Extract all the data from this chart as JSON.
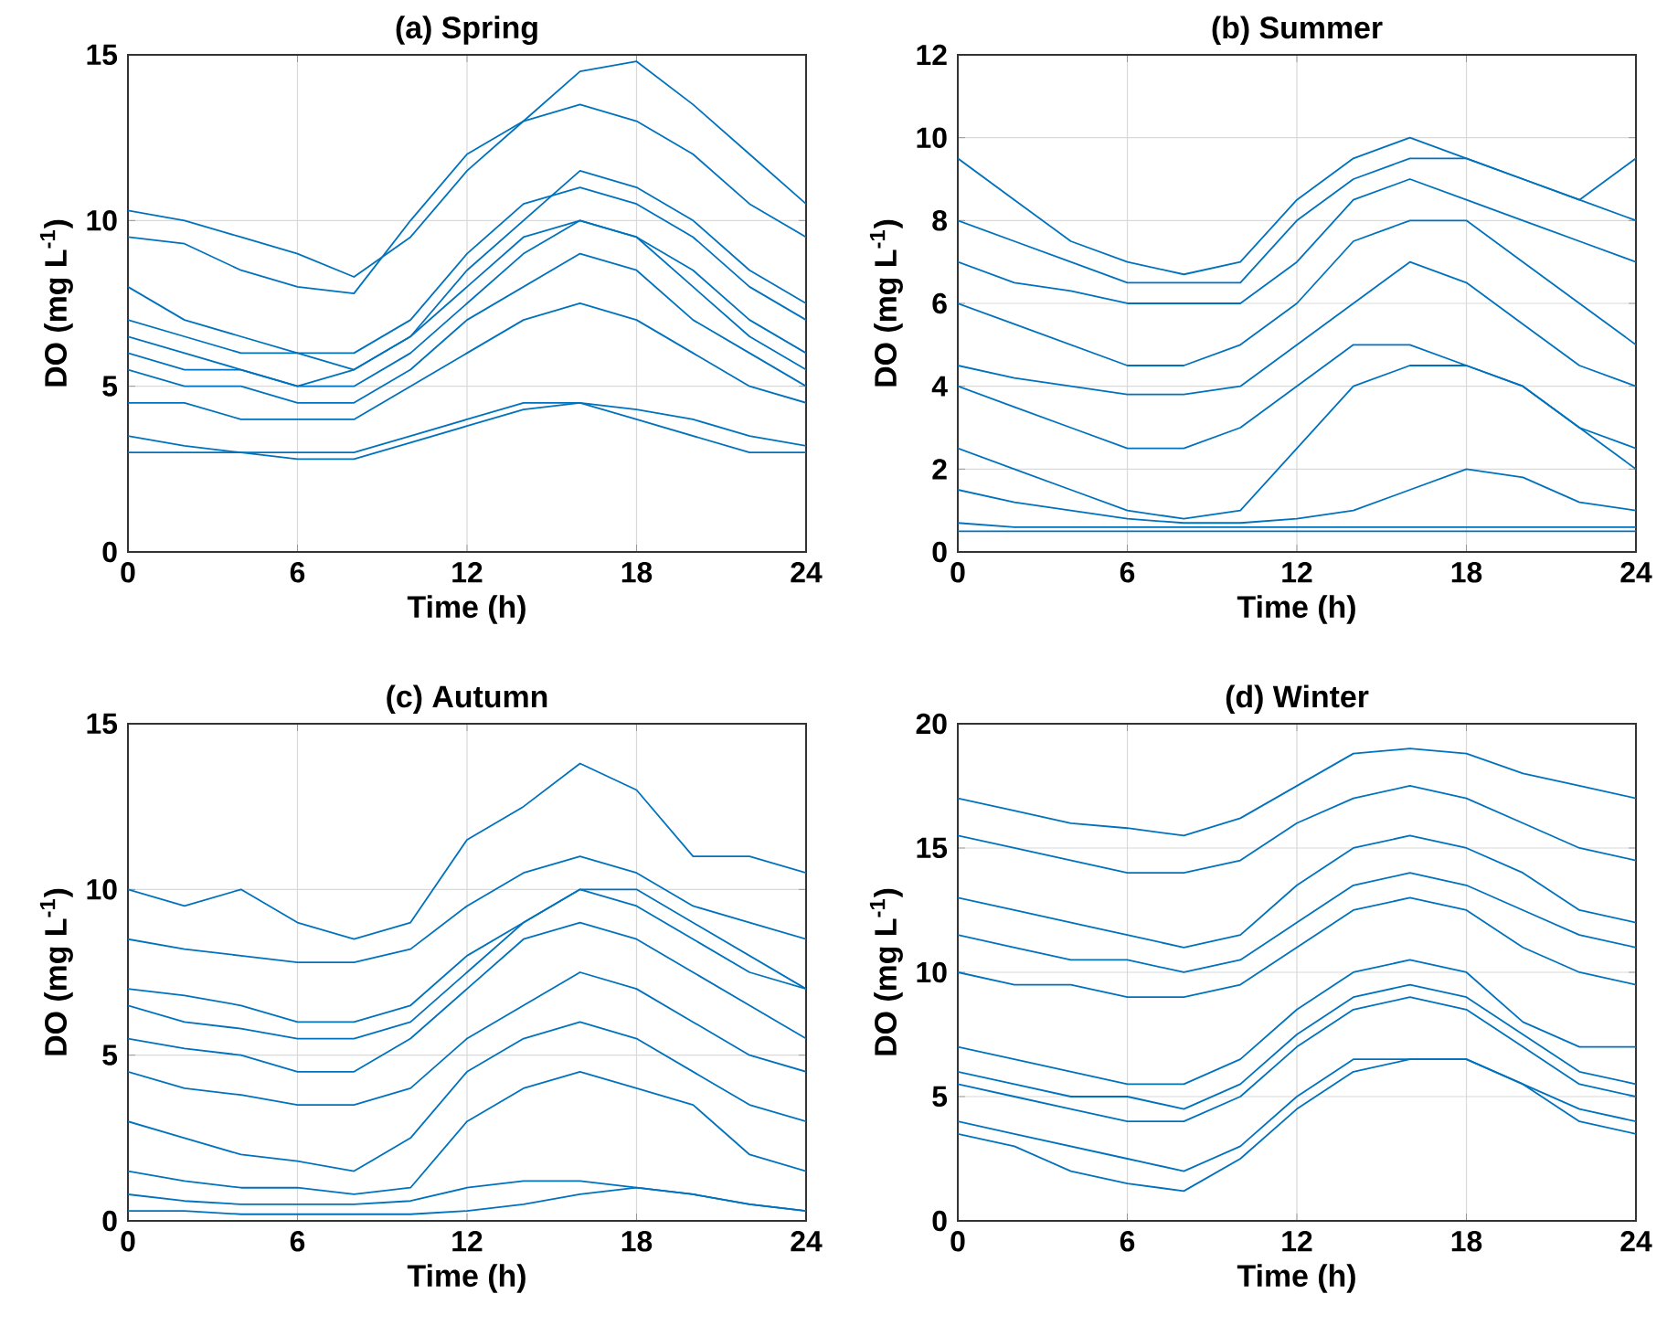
{
  "chart_data": [
    {
      "type": "line",
      "title": "(a) Spring",
      "xlabel": "Time (h)",
      "ylabel": "DO (mg L$^{-1}$)",
      "x": [
        0,
        2,
        4,
        6,
        8,
        10,
        12,
        14,
        16,
        18,
        20,
        22,
        24
      ],
      "xlim": [
        0,
        24
      ],
      "xticks": [
        0,
        6,
        12,
        18,
        24
      ],
      "ylim": [
        0,
        15
      ],
      "yticks": [
        0,
        5,
        10,
        15
      ],
      "grid": true,
      "series": [
        {
          "color": "#0072bd",
          "values": [
            10.3,
            10,
            9.5,
            9,
            8.3,
            9.5,
            11.5,
            13,
            14.5,
            14.8,
            13.5,
            12,
            10.5
          ]
        },
        {
          "color": "#0072bd",
          "values": [
            9.5,
            9.3,
            8.5,
            8,
            7.8,
            10,
            12,
            13,
            13.5,
            13,
            12,
            10.5,
            9.5
          ]
        },
        {
          "color": "#0072bd",
          "values": [
            8,
            7,
            6.5,
            6,
            6,
            7,
            9,
            10.5,
            11,
            10.5,
            9.5,
            8,
            7
          ]
        },
        {
          "color": "#0072bd",
          "values": [
            6.5,
            6,
            5.5,
            5,
            5.5,
            6.5,
            8,
            9.5,
            10,
            9.5,
            8.5,
            7,
            6
          ]
        },
        {
          "color": "#0072bd",
          "values": [
            5.5,
            5,
            5,
            4.5,
            4.5,
            5.5,
            7,
            8,
            9,
            8.5,
            7,
            6,
            5
          ]
        },
        {
          "color": "#0072bd",
          "values": [
            4.5,
            4.5,
            4,
            4,
            4,
            5,
            6,
            7,
            7.5,
            7,
            6,
            5,
            4.5
          ]
        },
        {
          "color": "#0072bd",
          "values": [
            3.5,
            3.2,
            3,
            3,
            3,
            3.5,
            4,
            4.5,
            4.5,
            4.3,
            4,
            3.5,
            3.2
          ]
        },
        {
          "color": "#0072bd",
          "values": [
            3,
            3,
            3,
            2.8,
            2.8,
            3.3,
            3.8,
            4.3,
            4.5,
            4,
            3.5,
            3,
            3
          ]
        },
        {
          "color": "#0072bd",
          "values": [
            7,
            6.5,
            6,
            6,
            5.5,
            6.5,
            8.5,
            10,
            11.5,
            11,
            10,
            8.5,
            7.5
          ]
        },
        {
          "color": "#0072bd",
          "values": [
            6,
            5.5,
            5.5,
            5,
            5,
            6,
            7.5,
            9,
            10,
            9.5,
            8,
            6.5,
            5.5
          ]
        }
      ]
    },
    {
      "type": "line",
      "title": "(b) Summer",
      "xlabel": "Time (h)",
      "ylabel": "DO (mg L$^{-1}$)",
      "x": [
        0,
        2,
        4,
        6,
        8,
        10,
        12,
        14,
        16,
        18,
        20,
        22,
        24
      ],
      "xlim": [
        0,
        24
      ],
      "xticks": [
        0,
        6,
        12,
        18,
        24
      ],
      "ylim": [
        0,
        12
      ],
      "yticks": [
        0,
        2,
        4,
        6,
        8,
        10,
        12
      ],
      "grid": true,
      "series": [
        {
          "color": "#0072bd",
          "values": [
            9.5,
            8.5,
            7.5,
            7,
            6.7,
            7,
            8.5,
            9.5,
            10,
            9.5,
            9,
            8.5,
            9.5
          ]
        },
        {
          "color": "#0072bd",
          "values": [
            8,
            7.5,
            7,
            6.5,
            6.5,
            6.5,
            8,
            9,
            9.5,
            9.5,
            9,
            8.5,
            8
          ]
        },
        {
          "color": "#0072bd",
          "values": [
            7,
            6.5,
            6.3,
            6,
            6,
            6,
            7,
            8.5,
            9,
            8.5,
            8,
            7.5,
            7
          ]
        },
        {
          "color": "#0072bd",
          "values": [
            6,
            5.5,
            5,
            4.5,
            4.5,
            5,
            6,
            7.5,
            8,
            8,
            7,
            6,
            5
          ]
        },
        {
          "color": "#0072bd",
          "values": [
            4.5,
            4.2,
            4,
            3.8,
            3.8,
            4,
            5,
            6,
            7,
            6.5,
            5.5,
            4.5,
            4
          ]
        },
        {
          "color": "#0072bd",
          "values": [
            4,
            3.5,
            3,
            2.5,
            2.5,
            3,
            4,
            5,
            5,
            4.5,
            4,
            3,
            2.5
          ]
        },
        {
          "color": "#0072bd",
          "values": [
            2.5,
            2,
            1.5,
            1,
            0.8,
            1,
            2.5,
            4,
            4.5,
            4.5,
            4,
            3,
            2
          ]
        },
        {
          "color": "#0072bd",
          "values": [
            1.5,
            1.2,
            1,
            0.8,
            0.7,
            0.7,
            0.8,
            1,
            1.5,
            2,
            1.8,
            1.2,
            1
          ]
        },
        {
          "color": "#0072bd",
          "values": [
            0.7,
            0.6,
            0.6,
            0.6,
            0.6,
            0.6,
            0.6,
            0.6,
            0.6,
            0.6,
            0.6,
            0.6,
            0.6
          ]
        },
        {
          "color": "#0072bd",
          "values": [
            0.5,
            0.5,
            0.5,
            0.5,
            0.5,
            0.5,
            0.5,
            0.5,
            0.5,
            0.5,
            0.5,
            0.5,
            0.5
          ]
        }
      ]
    },
    {
      "type": "line",
      "title": "(c) Autumn",
      "xlabel": "Time (h)",
      "ylabel": "DO (mg L$^{-1}$)",
      "x": [
        0,
        2,
        4,
        6,
        8,
        10,
        12,
        14,
        16,
        18,
        20,
        22,
        24
      ],
      "xlim": [
        0,
        24
      ],
      "xticks": [
        0,
        6,
        12,
        18,
        24
      ],
      "ylim": [
        0,
        15
      ],
      "yticks": [
        0,
        5,
        10,
        15
      ],
      "grid": true,
      "series": [
        {
          "color": "#0072bd",
          "values": [
            10,
            9.5,
            10,
            9,
            8.5,
            9,
            11.5,
            12.5,
            13.8,
            13,
            11,
            11,
            10.5
          ]
        },
        {
          "color": "#0072bd",
          "values": [
            8.5,
            8.2,
            8,
            7.8,
            7.8,
            8.2,
            9.5,
            10.5,
            11,
            10.5,
            9.5,
            9,
            8.5
          ]
        },
        {
          "color": "#0072bd",
          "values": [
            7,
            6.8,
            6.5,
            6,
            6,
            6.5,
            8,
            9,
            10,
            9.5,
            8.5,
            7.5,
            7
          ]
        },
        {
          "color": "#0072bd",
          "values": [
            5.5,
            5.2,
            5,
            4.5,
            4.5,
            5.5,
            7,
            8.5,
            9,
            8.5,
            7.5,
            6.5,
            5.5
          ]
        },
        {
          "color": "#0072bd",
          "values": [
            4.5,
            4,
            3.8,
            3.5,
            3.5,
            4,
            5.5,
            6.5,
            7.5,
            7,
            6,
            5,
            4.5
          ]
        },
        {
          "color": "#0072bd",
          "values": [
            3,
            2.5,
            2,
            1.8,
            1.5,
            2.5,
            4.5,
            5.5,
            6,
            5.5,
            4.5,
            3.5,
            3
          ]
        },
        {
          "color": "#0072bd",
          "values": [
            1.5,
            1.2,
            1,
            1,
            0.8,
            1,
            3,
            4,
            4.5,
            4,
            3.5,
            2,
            1.5
          ]
        },
        {
          "color": "#0072bd",
          "values": [
            0.8,
            0.6,
            0.5,
            0.5,
            0.5,
            0.6,
            1,
            1.2,
            1.2,
            1,
            0.8,
            0.5,
            0.3
          ]
        },
        {
          "color": "#0072bd",
          "values": [
            0.3,
            0.3,
            0.2,
            0.2,
            0.2,
            0.2,
            0.3,
            0.5,
            0.8,
            1,
            0.8,
            0.5,
            0.3
          ]
        },
        {
          "color": "#0072bd",
          "values": [
            6.5,
            6,
            5.8,
            5.5,
            5.5,
            6,
            7.5,
            9,
            10,
            10,
            9,
            8,
            7
          ]
        }
      ]
    },
    {
      "type": "line",
      "title": "(d) Winter",
      "xlabel": "Time (h)",
      "ylabel": "DO (mg L$^{-1}$)",
      "x": [
        0,
        2,
        4,
        6,
        8,
        10,
        12,
        14,
        16,
        18,
        20,
        22,
        24
      ],
      "xlim": [
        0,
        24
      ],
      "xticks": [
        0,
        6,
        12,
        18,
        24
      ],
      "ylim": [
        0,
        20
      ],
      "yticks": [
        0,
        5,
        10,
        15,
        20
      ],
      "grid": true,
      "series": [
        {
          "color": "#0072bd",
          "values": [
            17,
            16.5,
            16,
            15.8,
            15.5,
            16.2,
            17.5,
            18.8,
            19,
            18.8,
            18,
            17.5,
            17
          ]
        },
        {
          "color": "#0072bd",
          "values": [
            15.5,
            15,
            14.5,
            14,
            14,
            14.5,
            16,
            17,
            17.5,
            17,
            16,
            15,
            14.5
          ]
        },
        {
          "color": "#0072bd",
          "values": [
            13,
            12.5,
            12,
            11.5,
            11,
            11.5,
            13.5,
            15,
            15.5,
            15,
            14,
            12.5,
            12
          ]
        },
        {
          "color": "#0072bd",
          "values": [
            11.5,
            11,
            10.5,
            10.5,
            10,
            10.5,
            12,
            13.5,
            14,
            13.5,
            12.5,
            11.5,
            11
          ]
        },
        {
          "color": "#0072bd",
          "values": [
            10,
            9.5,
            9.5,
            9,
            9,
            9.5,
            11,
            12.5,
            13,
            12.5,
            11,
            10,
            9.5
          ]
        },
        {
          "color": "#0072bd",
          "values": [
            7,
            6.5,
            6,
            5.5,
            5.5,
            6.5,
            8.5,
            10,
            10.5,
            10,
            8,
            7,
            7
          ]
        },
        {
          "color": "#0072bd",
          "values": [
            5.5,
            5,
            4.5,
            4,
            4,
            5,
            7,
            8.5,
            9,
            8.5,
            7,
            5.5,
            5
          ]
        },
        {
          "color": "#0072bd",
          "values": [
            4,
            3.5,
            3,
            2.5,
            2,
            3,
            5,
            6.5,
            6.5,
            6.5,
            5.5,
            4.5,
            4
          ]
        },
        {
          "color": "#0072bd",
          "values": [
            3.5,
            3,
            2,
            1.5,
            1.2,
            2.5,
            4.5,
            6,
            6.5,
            6.5,
            5.5,
            4,
            3.5
          ]
        },
        {
          "color": "#0072bd",
          "values": [
            6,
            5.5,
            5,
            5,
            4.5,
            5.5,
            7.5,
            9,
            9.5,
            9,
            7.5,
            6,
            5.5
          ]
        }
      ]
    }
  ]
}
